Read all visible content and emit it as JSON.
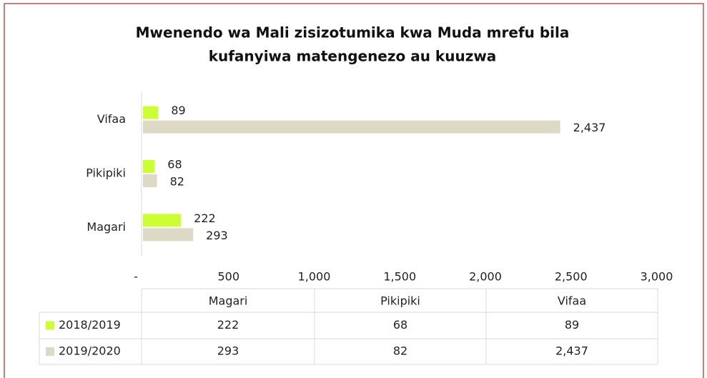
{
  "chart_data": {
    "type": "barh",
    "title_lines": [
      "Mwenendo wa Mali zisizotumika kwa Muda mrefu bila",
      "kufanyiwa matengenezo au kuuzwa"
    ],
    "categories": [
      "Magari",
      "Pikipiki",
      "Vifaa"
    ],
    "series": [
      {
        "name": "2018/2019",
        "color": "#ccff33",
        "values": [
          222,
          68,
          89
        ],
        "value_labels": [
          "222",
          "68",
          "89"
        ]
      },
      {
        "name": "2019/2020",
        "color": "#ddd9c4",
        "values": [
          293,
          82,
          2437
        ],
        "value_labels": [
          "293",
          "82",
          "2,437"
        ]
      }
    ],
    "xlim": [
      0,
      3000
    ],
    "xticks": [
      {
        "value": 0,
        "label": "-"
      },
      500,
      {
        "value": 1000,
        "label": "1,000"
      },
      {
        "value": 1500,
        "label": "1,500"
      },
      {
        "value": 2000,
        "label": "2,000"
      },
      {
        "value": 2500,
        "label": "2,500"
      },
      {
        "value": 3000,
        "label": "3,000"
      }
    ],
    "data_table": true
  }
}
